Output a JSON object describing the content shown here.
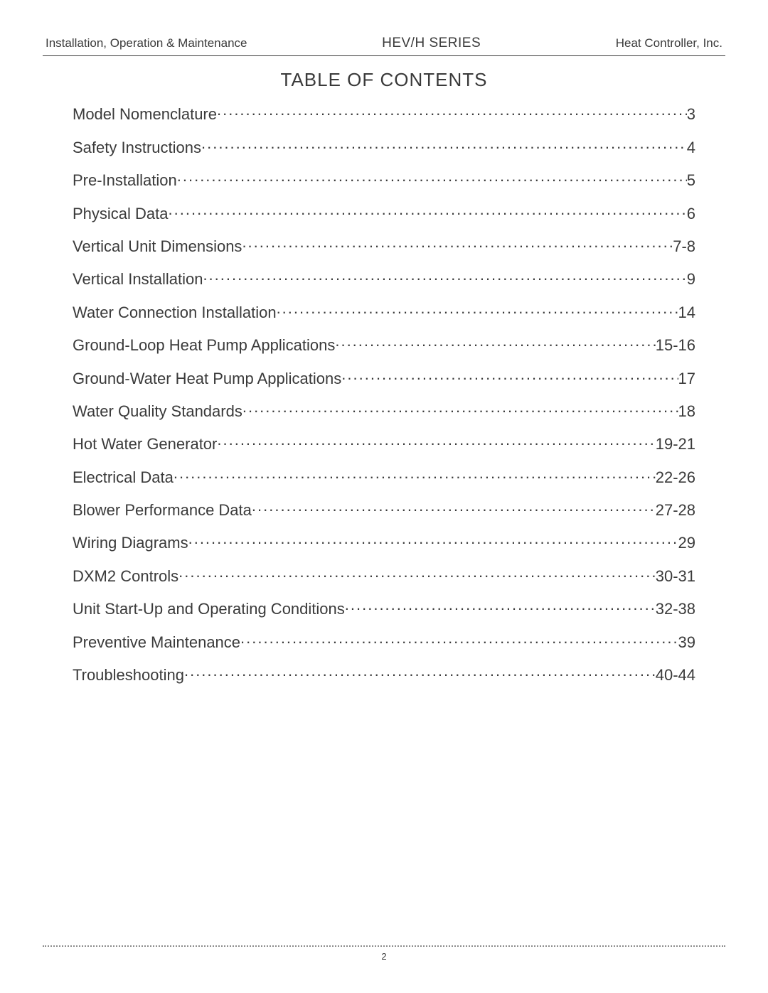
{
  "header": {
    "left": "Installation, Operation & Maintenance",
    "center": "HEV/H SERIES",
    "right": "Heat Controller, Inc."
  },
  "toc_title": "TABLE OF CONTENTS",
  "toc": [
    {
      "label": "Model Nomenclature ",
      "page": "3"
    },
    {
      "label": "Safety Instructions",
      "page": "4"
    },
    {
      "label": "Pre-Installation",
      "page": "5"
    },
    {
      "label": "Physical Data",
      "page": "6"
    },
    {
      "label": "Vertical Unit Dimensions",
      "page": "7-8"
    },
    {
      "label": "Vertical Installation",
      "page": "9"
    },
    {
      "label": "Water Connection Installation",
      "page": "14"
    },
    {
      "label": "Ground-Loop Heat Pump Applications ",
      "page": "15-16"
    },
    {
      "label": "Ground-Water Heat Pump Applications",
      "page": "17"
    },
    {
      "label": "Water Quality Standards ",
      "page": "18"
    },
    {
      "label": "Hot Water Generator ",
      "page": "19-21"
    },
    {
      "label": "Electrical Data ",
      "page": "22-26"
    },
    {
      "label": "Blower Performance Data ",
      "page": "27-28"
    },
    {
      "label": "Wiring Diagrams",
      "page": "29"
    },
    {
      "label": "DXM2 Controls ",
      "page": "30-31"
    },
    {
      "label": "Unit Start-Up and Operating Conditions",
      "page": "32-38"
    },
    {
      "label": "Preventive Maintenance",
      "page": "39"
    },
    {
      "label": "Troubleshooting",
      "page": "40-44"
    }
  ],
  "page_number": "2",
  "colors": {
    "text": "#3a3a3a",
    "background": "#ffffff",
    "dotted": "#8a8a8a"
  },
  "typography": {
    "header_fontsize": 17,
    "header_center_fontsize": 19,
    "title_fontsize": 26,
    "toc_fontsize": 22,
    "pagenum_fontsize": 13,
    "font_family": "Arial"
  }
}
